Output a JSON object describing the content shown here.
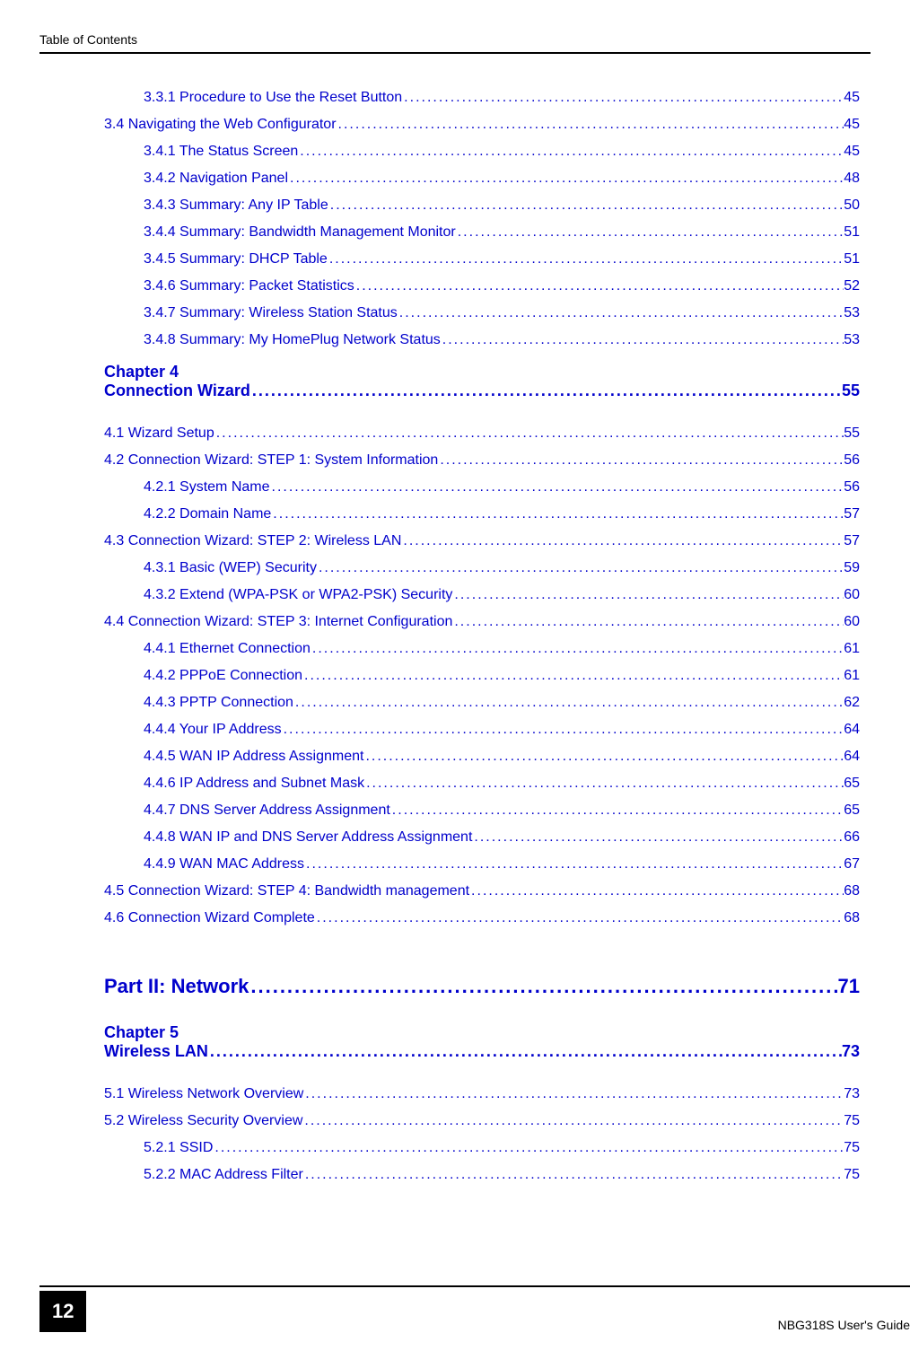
{
  "header": {
    "label": "Table of Contents"
  },
  "toc": {
    "section1": [
      {
        "level": 3,
        "text": "3.3.1 Procedure to Use the Reset Button ",
        "page": " 45"
      },
      {
        "level": 2,
        "text": "3.4 Navigating the Web Configurator    ",
        "page": " 45"
      },
      {
        "level": 3,
        "text": "3.4.1 The Status Screen ",
        "page": " 45"
      },
      {
        "level": 3,
        "text": "3.4.2 Navigation Panel ",
        "page": " 48"
      },
      {
        "level": 3,
        "text": "3.4.3 Summary: Any IP Table ",
        "page": " 50"
      },
      {
        "level": 3,
        "text": "3.4.4 Summary: Bandwidth Management Monitor    ",
        "page": " 51"
      },
      {
        "level": 3,
        "text": "3.4.5 Summary: DHCP Table    ",
        "page": " 51"
      },
      {
        "level": 3,
        "text": "3.4.6 Summary: Packet Statistics    ",
        "page": " 52"
      },
      {
        "level": 3,
        "text": "3.4.7 Summary: Wireless Station Status    ",
        "page": " 53"
      },
      {
        "level": 3,
        "text": "3.4.8 Summary: My HomePlug Network Status ",
        "page": " 53"
      }
    ],
    "chapter4": {
      "label": "Chapter  4",
      "title": "Connection Wizard ",
      "page": "55"
    },
    "section2": [
      {
        "level": 2,
        "text": "4.1 Wizard Setup ",
        "page": " 55"
      },
      {
        "level": 2,
        "text": "4.2 Connection Wizard: STEP 1: System Information ",
        "page": " 56"
      },
      {
        "level": 3,
        "text": "4.2.1 System Name ",
        "page": " 56"
      },
      {
        "level": 3,
        "text": "4.2.2 Domain Name ",
        "page": " 57"
      },
      {
        "level": 2,
        "text": "4.3 Connection Wizard: STEP 2: Wireless LAN ",
        "page": " 57"
      },
      {
        "level": 3,
        "text": "4.3.1 Basic (WEP) Security ",
        "page": " 59"
      },
      {
        "level": 3,
        "text": "4.3.2 Extend (WPA-PSK or WPA2-PSK) Security ",
        "page": " 60"
      },
      {
        "level": 2,
        "text": "4.4 Connection Wizard: STEP 3: Internet Configuration ",
        "page": " 60"
      },
      {
        "level": 3,
        "text": "4.4.1 Ethernet Connection ",
        "page": " 61"
      },
      {
        "level": 3,
        "text": "4.4.2 PPPoE Connection ",
        "page": " 61"
      },
      {
        "level": 3,
        "text": "4.4.3 PPTP Connection ",
        "page": " 62"
      },
      {
        "level": 3,
        "text": "4.4.4 Your IP Address ",
        "page": " 64"
      },
      {
        "level": 3,
        "text": "4.4.5 WAN IP Address Assignment ",
        "page": " 64"
      },
      {
        "level": 3,
        "text": "4.4.6 IP Address and Subnet Mask ",
        "page": " 65"
      },
      {
        "level": 3,
        "text": "4.4.7 DNS Server Address Assignment ",
        "page": " 65"
      },
      {
        "level": 3,
        "text": "4.4.8 WAN IP and DNS Server Address Assignment ",
        "page": " 66"
      },
      {
        "level": 3,
        "text": "4.4.9 WAN MAC Address ",
        "page": " 67"
      },
      {
        "level": 2,
        "text": "4.5 Connection Wizard: STEP 4: Bandwidth management ",
        "page": " 68"
      },
      {
        "level": 2,
        "text": "4.6 Connection Wizard Complete ",
        "page": " 68"
      }
    ],
    "part2": {
      "title": "Part II: Network",
      "page": " 71"
    },
    "chapter5": {
      "label": "Chapter  5",
      "title": "Wireless LAN",
      "page": "73"
    },
    "section3": [
      {
        "level": 2,
        "text": "5.1 Wireless Network Overview ",
        "page": " 73"
      },
      {
        "level": 2,
        "text": "5.2 Wireless Security Overview ",
        "page": " 75"
      },
      {
        "level": 3,
        "text": "5.2.1 SSID ",
        "page": " 75"
      },
      {
        "level": 3,
        "text": "5.2.2 MAC Address Filter ",
        "page": " 75"
      }
    ]
  },
  "footer": {
    "page_number": "12",
    "guide_label": "NBG318S User's Guide"
  },
  "style": {
    "link_color": "#0000cc",
    "text_color": "#000000",
    "background_color": "#ffffff"
  }
}
